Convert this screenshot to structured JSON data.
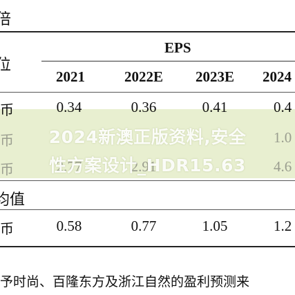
{
  "header": {
    "top_label": "倍",
    "col_label": "位",
    "eps_label": "EPS",
    "years": [
      "2021",
      "2022E",
      "2023E",
      "2024"
    ]
  },
  "rows": [
    {
      "unit": "民币",
      "values": [
        "0.34",
        "0.36",
        "0.41",
        "0.4"
      ]
    },
    {
      "unit": "民币",
      "values": [
        "",
        "",
        "",
        "1.0"
      ]
    },
    {
      "unit": "民币",
      "values": [
        "2.77",
        "2.91",
        "",
        "4.6"
      ]
    }
  ],
  "section2": {
    "label": "均值",
    "unit": "民币",
    "values": [
      "0.58",
      "0.77",
      "1.05",
      "1.2"
    ]
  },
  "watermark": {
    "line1": "2024新澳正版资料,安全",
    "line2": "性方案设计_HDR15.63"
  },
  "footnote": "予时尚、百隆东方及浙江自然的盈利预测来"
}
